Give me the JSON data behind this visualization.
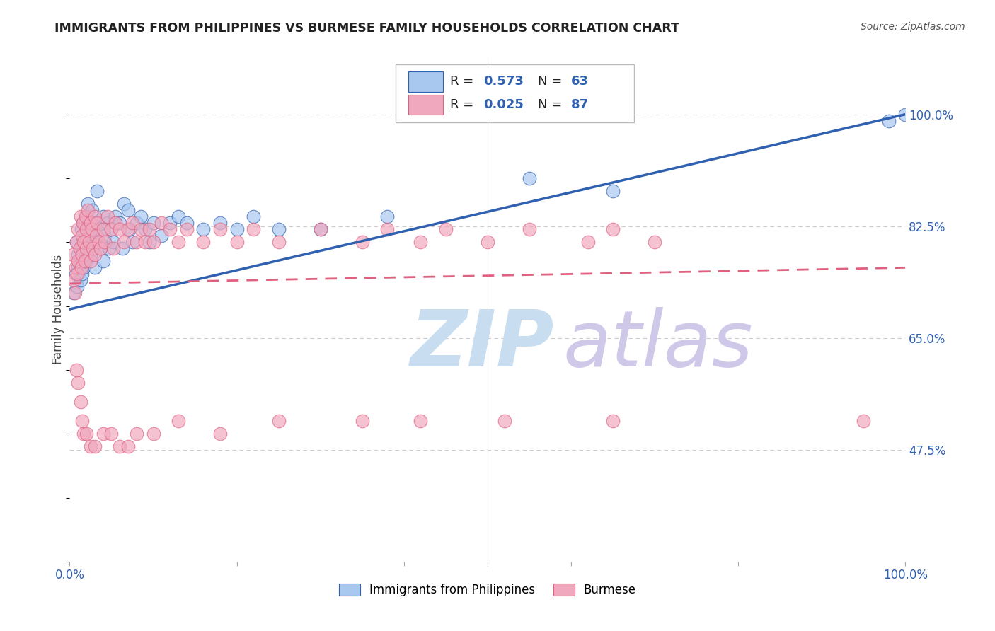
{
  "title": "IMMIGRANTS FROM PHILIPPINES VS BURMESE FAMILY HOUSEHOLDS CORRELATION CHART",
  "source": "Source: ZipAtlas.com",
  "ylabel": "Family Households",
  "ytick_labels": [
    "100.0%",
    "82.5%",
    "65.0%",
    "47.5%"
  ],
  "ytick_values": [
    1.0,
    0.825,
    0.65,
    0.475
  ],
  "blue_scatter_color": "#a8c8f0",
  "pink_scatter_color": "#f0a8be",
  "blue_line_color": "#3060b0",
  "pink_line_color": "#e06080",
  "watermark_color": "#c8ddf0",
  "bg_color": "#ffffff",
  "grid_color": "#cccccc",
  "blue_R": 0.573,
  "blue_N": 63,
  "pink_R": 0.025,
  "pink_N": 87,
  "blue_points_x": [
    0.005,
    0.007,
    0.008,
    0.009,
    0.01,
    0.01,
    0.012,
    0.013,
    0.014,
    0.015,
    0.015,
    0.016,
    0.017,
    0.018,
    0.019,
    0.02,
    0.02,
    0.022,
    0.023,
    0.025,
    0.025,
    0.027,
    0.028,
    0.03,
    0.03,
    0.032,
    0.033,
    0.035,
    0.037,
    0.04,
    0.04,
    0.042,
    0.045,
    0.047,
    0.05,
    0.052,
    0.055,
    0.06,
    0.063,
    0.065,
    0.07,
    0.072,
    0.075,
    0.08,
    0.085,
    0.09,
    0.095,
    0.1,
    0.11,
    0.12,
    0.13,
    0.14,
    0.16,
    0.18,
    0.2,
    0.22,
    0.25,
    0.3,
    0.38,
    0.55,
    0.65,
    0.98,
    1.0
  ],
  "blue_points_y": [
    0.72,
    0.75,
    0.8,
    0.73,
    0.78,
    0.76,
    0.77,
    0.74,
    0.82,
    0.79,
    0.75,
    0.83,
    0.76,
    0.8,
    0.78,
    0.84,
    0.77,
    0.86,
    0.8,
    0.81,
    0.78,
    0.85,
    0.79,
    0.83,
    0.76,
    0.8,
    0.88,
    0.82,
    0.79,
    0.84,
    0.77,
    0.81,
    0.83,
    0.79,
    0.82,
    0.8,
    0.84,
    0.83,
    0.79,
    0.86,
    0.85,
    0.82,
    0.8,
    0.83,
    0.84,
    0.82,
    0.8,
    0.83,
    0.81,
    0.83,
    0.84,
    0.83,
    0.82,
    0.83,
    0.82,
    0.84,
    0.82,
    0.82,
    0.84,
    0.9,
    0.88,
    0.99,
    1.0
  ],
  "pink_points_x": [
    0.004,
    0.005,
    0.006,
    0.007,
    0.008,
    0.009,
    0.01,
    0.01,
    0.012,
    0.013,
    0.014,
    0.015,
    0.015,
    0.016,
    0.017,
    0.018,
    0.019,
    0.02,
    0.02,
    0.022,
    0.023,
    0.025,
    0.025,
    0.027,
    0.028,
    0.03,
    0.03,
    0.032,
    0.033,
    0.035,
    0.037,
    0.04,
    0.042,
    0.045,
    0.05,
    0.052,
    0.055,
    0.06,
    0.065,
    0.07,
    0.075,
    0.08,
    0.085,
    0.09,
    0.095,
    0.1,
    0.11,
    0.12,
    0.13,
    0.14,
    0.16,
    0.18,
    0.2,
    0.22,
    0.25,
    0.3,
    0.35,
    0.38,
    0.42,
    0.45,
    0.5,
    0.55,
    0.62,
    0.65,
    0.7,
    0.008,
    0.01,
    0.013,
    0.015,
    0.017,
    0.02,
    0.025,
    0.03,
    0.04,
    0.05,
    0.06,
    0.07,
    0.08,
    0.1,
    0.13,
    0.18,
    0.25,
    0.35,
    0.42,
    0.52,
    0.65,
    0.95
  ],
  "pink_points_y": [
    0.78,
    0.74,
    0.72,
    0.76,
    0.8,
    0.75,
    0.82,
    0.77,
    0.79,
    0.84,
    0.76,
    0.81,
    0.78,
    0.83,
    0.8,
    0.77,
    0.84,
    0.82,
    0.79,
    0.85,
    0.8,
    0.83,
    0.77,
    0.82,
    0.79,
    0.84,
    0.78,
    0.81,
    0.83,
    0.8,
    0.79,
    0.82,
    0.8,
    0.84,
    0.82,
    0.79,
    0.83,
    0.82,
    0.8,
    0.82,
    0.83,
    0.8,
    0.82,
    0.8,
    0.82,
    0.8,
    0.83,
    0.82,
    0.8,
    0.82,
    0.8,
    0.82,
    0.8,
    0.82,
    0.8,
    0.82,
    0.8,
    0.82,
    0.8,
    0.82,
    0.8,
    0.82,
    0.8,
    0.82,
    0.8,
    0.6,
    0.58,
    0.55,
    0.52,
    0.5,
    0.5,
    0.48,
    0.48,
    0.5,
    0.5,
    0.48,
    0.48,
    0.5,
    0.5,
    0.52,
    0.5,
    0.52,
    0.52,
    0.52,
    0.52,
    0.52,
    0.52
  ],
  "xlim": [
    0.0,
    1.0
  ],
  "ylim": [
    0.3,
    1.09
  ],
  "blue_line_start_y": 0.695,
  "blue_line_end_y": 1.0,
  "pink_line_start_y": 0.735,
  "pink_line_end_y": 0.76
}
